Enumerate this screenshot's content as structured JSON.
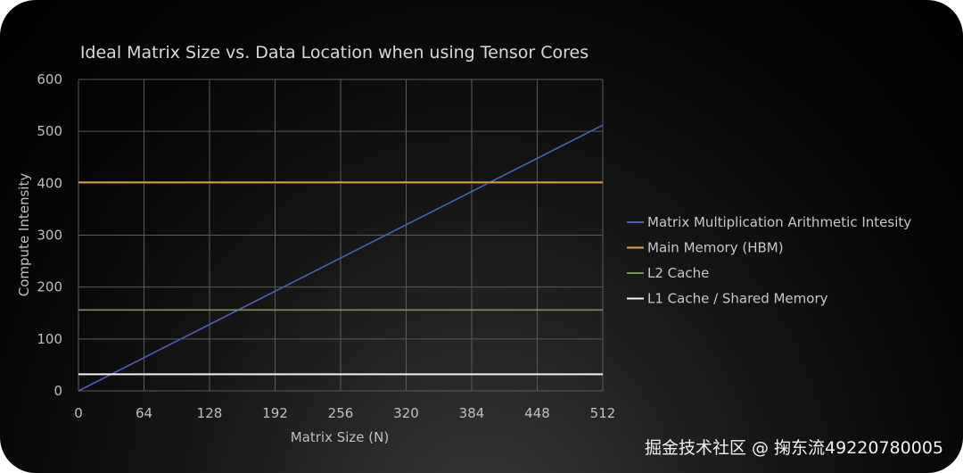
{
  "chart_data": {
    "type": "line",
    "title": "Ideal Matrix Size vs. Data Location when using Tensor Cores",
    "xlabel": "Matrix Size (N)",
    "ylabel": "Compute Intensity",
    "xlim": [
      0,
      512
    ],
    "ylim": [
      0,
      600
    ],
    "xticks": [
      0,
      64,
      128,
      192,
      256,
      320,
      384,
      448,
      512
    ],
    "yticks": [
      0,
      100,
      200,
      300,
      400,
      500,
      600
    ],
    "grid": true,
    "legend_position": "right",
    "series": [
      {
        "name": "Matrix Multiplication Arithmetic Intesity",
        "color": "#4a5fb8",
        "x": [
          0,
          512
        ],
        "y": [
          0,
          512
        ]
      },
      {
        "name": "Main Memory (HBM)",
        "color": "#d9a441",
        "x": [
          0,
          512
        ],
        "y": [
          402,
          402
        ]
      },
      {
        "name": "L2 Cache",
        "color": "#6e9a4a",
        "x": [
          0,
          512
        ],
        "y": [
          156,
          156
        ]
      },
      {
        "name": "L1 Cache / Shared Memory",
        "color": "#f2f2f2",
        "x": [
          0,
          512
        ],
        "y": [
          32,
          32
        ]
      }
    ]
  },
  "watermark": "掘金技术社区 @ 掬东流49220780005"
}
